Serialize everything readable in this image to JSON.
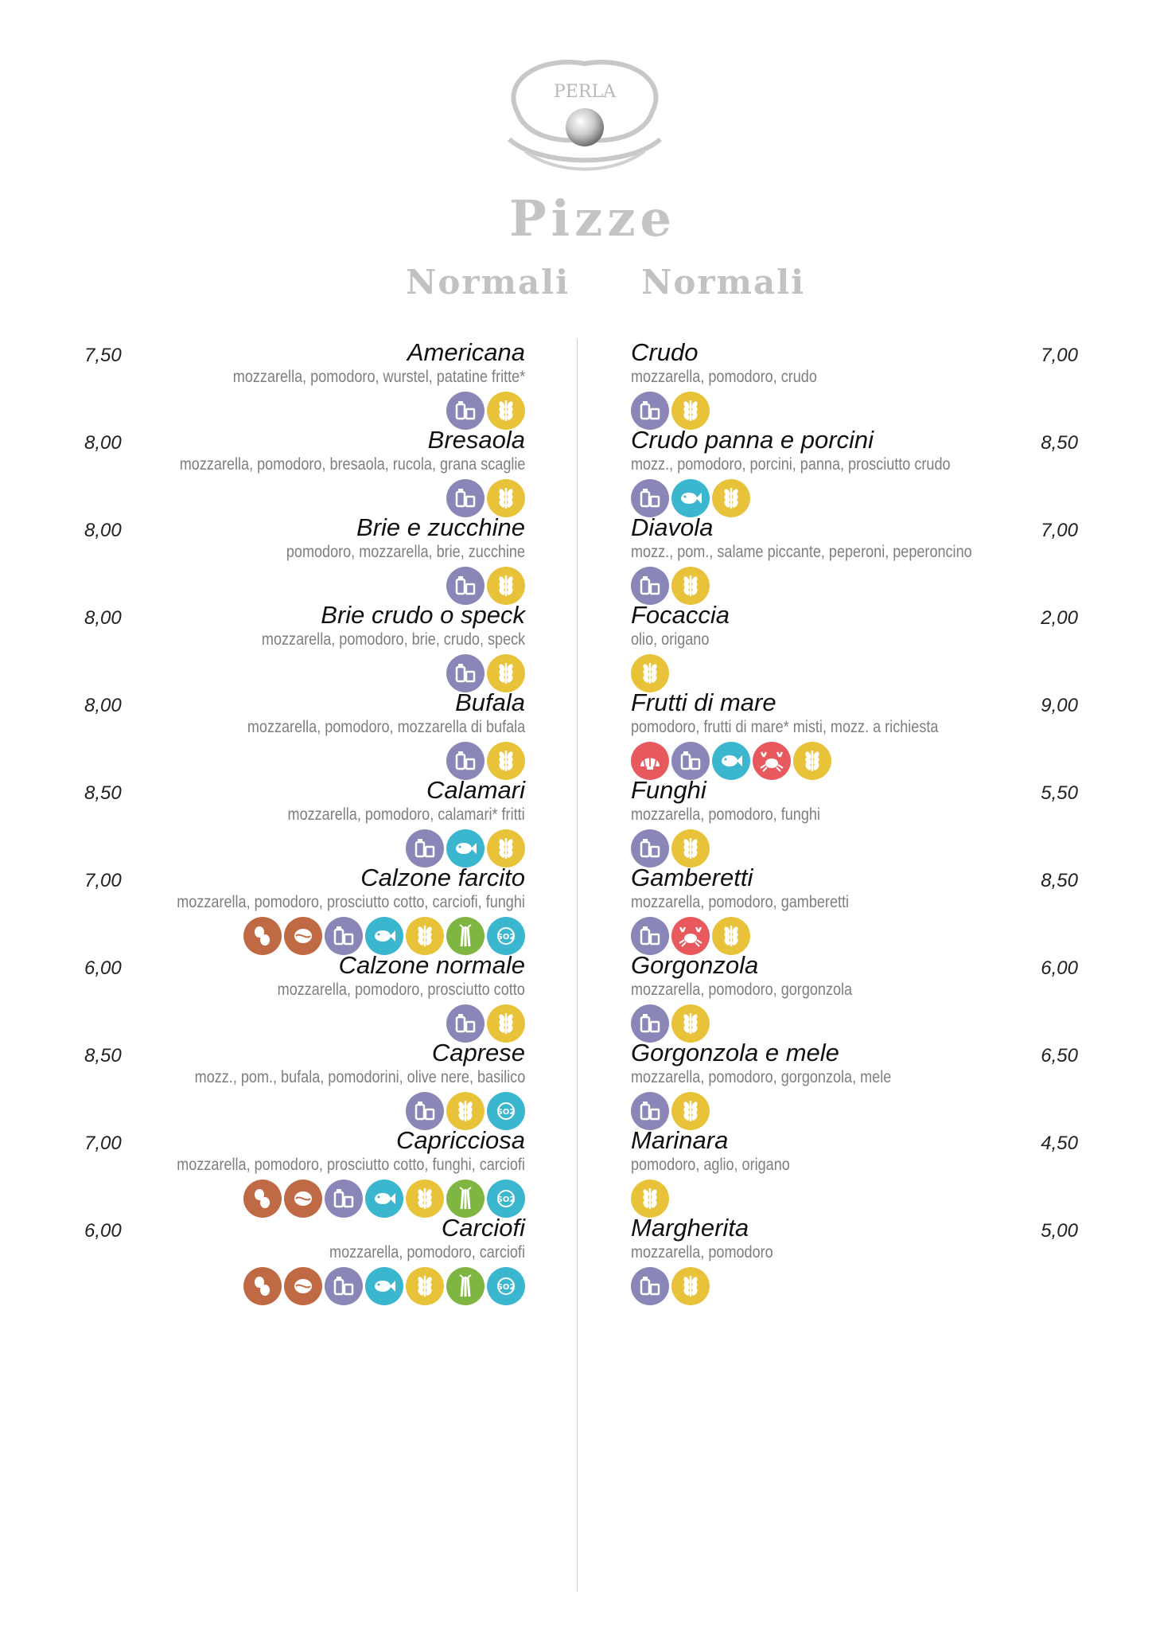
{
  "header": {
    "logo_text": "PERLA",
    "title": "Pizze",
    "left_heading": "Normali",
    "right_heading": "Normali"
  },
  "allergen_colors": {
    "latte": "#8b86b8",
    "glutine": "#e8c33a",
    "pesce": "#3ab7cf",
    "crostacei": "#e8595e",
    "molluschi": "#e8595e",
    "arachidi": "#c06a45",
    "frutta_guscio": "#c06a45",
    "sedano": "#7fb641",
    "solfiti": "#3ab7cf"
  },
  "left": [
    {
      "name": "Americana",
      "price": "7,50",
      "ingredients": "mozzarella, pomodoro, wurstel, patatine fritte*",
      "allergens": [
        "latte",
        "glutine"
      ]
    },
    {
      "name": "Bresaola",
      "price": "8,00",
      "ingredients": "mozzarella, pomodoro, bresaola, rucola, grana scaglie",
      "allergens": [
        "latte",
        "glutine"
      ]
    },
    {
      "name": "Brie e zucchine",
      "price": "8,00",
      "ingredients": "pomodoro, mozzarella, brie, zucchine",
      "allergens": [
        "latte",
        "glutine"
      ]
    },
    {
      "name": "Brie crudo o speck",
      "price": "8,00",
      "ingredients": "mozzarella, pomodoro, brie, crudo, speck",
      "allergens": [
        "latte",
        "glutine"
      ]
    },
    {
      "name": "Bufala",
      "price": "8,00",
      "ingredients": "mozzarella, pomodoro, mozzarella di bufala",
      "allergens": [
        "latte",
        "glutine"
      ]
    },
    {
      "name": "Calamari",
      "price": "8,50",
      "ingredients": "mozzarella, pomodoro, calamari* fritti",
      "allergens": [
        "latte",
        "pesce",
        "glutine"
      ]
    },
    {
      "name": "Calzone farcito",
      "price": "7,00",
      "ingredients": "mozzarella, pomodoro, prosciutto cotto, carciofi, funghi",
      "allergens": [
        "arachidi",
        "frutta_guscio",
        "latte",
        "pesce",
        "glutine",
        "sedano",
        "solfiti"
      ]
    },
    {
      "name": "Calzone normale",
      "price": "6,00",
      "ingredients": "mozzarella, pomodoro, prosciutto cotto",
      "allergens": [
        "latte",
        "glutine"
      ]
    },
    {
      "name": "Caprese",
      "price": "8,50",
      "ingredients": "mozz., pom., bufala, pomodorini, olive nere, basilico",
      "allergens": [
        "latte",
        "glutine",
        "solfiti"
      ]
    },
    {
      "name": "Capricciosa",
      "price": "7,00",
      "ingredients": "mozzarella, pomodoro, prosciutto cotto, funghi, carciofi",
      "allergens": [
        "arachidi",
        "frutta_guscio",
        "latte",
        "pesce",
        "glutine",
        "sedano",
        "solfiti"
      ]
    },
    {
      "name": "Carciofi",
      "price": "6,00",
      "ingredients": "mozzarella, pomodoro, carciofi",
      "allergens": [
        "arachidi",
        "frutta_guscio",
        "latte",
        "pesce",
        "glutine",
        "sedano",
        "solfiti"
      ]
    }
  ],
  "right": [
    {
      "name": "Crudo",
      "price": "7,00",
      "ingredients": "mozzarella, pomodoro, crudo",
      "allergens": [
        "latte",
        "glutine"
      ]
    },
    {
      "name": "Crudo panna e porcini",
      "price": "8,50",
      "ingredients": "mozz., pomodoro, porcini, panna, prosciutto crudo",
      "allergens": [
        "latte",
        "pesce",
        "glutine"
      ]
    },
    {
      "name": "Diavola",
      "price": "7,00",
      "ingredients": "mozz., pom., salame piccante, peperoni, peperoncino",
      "allergens": [
        "latte",
        "glutine"
      ]
    },
    {
      "name": "Focaccia",
      "price": "2,00",
      "ingredients": "olio, origano",
      "allergens": [
        "glutine"
      ]
    },
    {
      "name": "Frutti di mare",
      "price": "9,00",
      "ingredients": "pomodoro, frutti di mare* misti, mozz. a richiesta",
      "allergens": [
        "molluschi",
        "latte",
        "pesce",
        "crostacei",
        "glutine"
      ]
    },
    {
      "name": "Funghi",
      "price": "5,50",
      "ingredients": "mozzarella, pomodoro, funghi",
      "allergens": [
        "latte",
        "glutine"
      ]
    },
    {
      "name": "Gamberetti",
      "price": "8,50",
      "ingredients": "mozzarella, pomodoro, gamberetti",
      "allergens": [
        "latte",
        "crostacei",
        "glutine"
      ]
    },
    {
      "name": "Gorgonzola",
      "price": "6,00",
      "ingredients": "mozzarella, pomodoro, gorgonzola",
      "allergens": [
        "latte",
        "glutine"
      ]
    },
    {
      "name": "Gorgonzola e mele",
      "price": "6,50",
      "ingredients": "mozzarella, pomodoro, gorgonzola, mele",
      "allergens": [
        "latte",
        "glutine"
      ]
    },
    {
      "name": "Marinara",
      "price": "4,50",
      "ingredients": "pomodoro, aglio, origano",
      "allergens": [
        "glutine"
      ]
    },
    {
      "name": "Margherita",
      "price": "5,00",
      "ingredients": "mozzarella, pomodoro",
      "allergens": [
        "latte",
        "glutine"
      ]
    }
  ]
}
